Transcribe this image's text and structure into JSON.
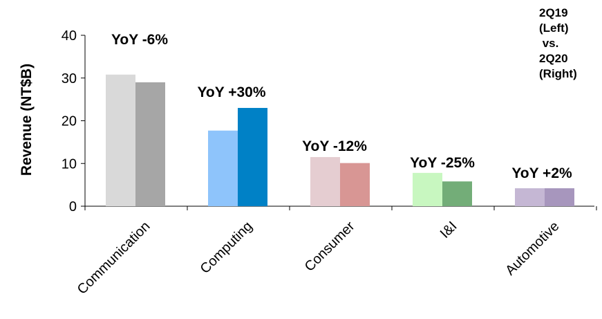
{
  "chart_data": {
    "type": "bar",
    "ylabel": "Revenue (NT$B)",
    "ylim": [
      0,
      40
    ],
    "yticks": [
      0,
      10,
      20,
      30,
      40
    ],
    "grid": false,
    "categories": [
      "Communication",
      "Computing",
      "Consumer",
      "I&I",
      "Automotive"
    ],
    "series": [
      {
        "name": "2Q19",
        "values": [
          30.8,
          17.7,
          11.5,
          7.8,
          4.2
        ]
      },
      {
        "name": "2Q20",
        "values": [
          29.0,
          23.0,
          10.1,
          5.8,
          4.2
        ]
      }
    ],
    "annotations": [
      "YoY -6%",
      "YoY +30%",
      "YoY -12%",
      "YoY -25%",
      "YoY +2%"
    ],
    "colors": {
      "left": [
        "#d9d9d9",
        "#8ec4fb",
        "#e5cdd1",
        "#c8f7c0",
        "#c5b7d4"
      ],
      "right": [
        "#a6a6a6",
        "#0081c6",
        "#d89694",
        "#73ad78",
        "#a796bd"
      ]
    },
    "legend_lines": [
      "2Q19",
      "(Left)",
      " vs.",
      "2Q20",
      "(Right)"
    ],
    "legend_placement": "top-right"
  }
}
